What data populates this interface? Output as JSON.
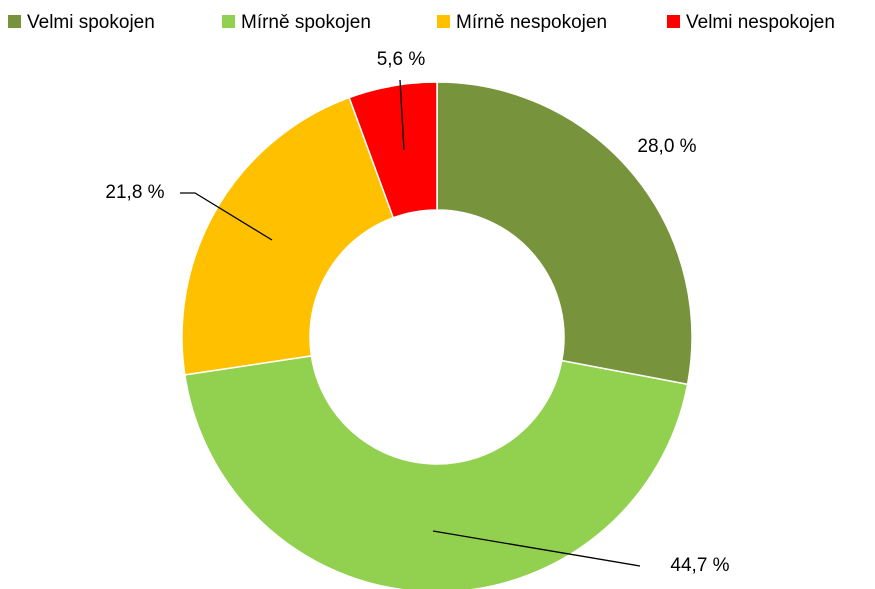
{
  "chart_data": {
    "type": "donut",
    "categories": [
      "Velmi spokojen",
      "Mírně spokojen",
      "Mírně nespokojen",
      "Velmi nespokojen"
    ],
    "values": [
      28.0,
      44.7,
      21.8,
      5.6
    ],
    "value_labels": [
      "28,0 %",
      "44,7 %",
      "21,8 %",
      "5,6 %"
    ],
    "colors": [
      "#77933c",
      "#92d050",
      "#ffc000",
      "#ff0000"
    ],
    "legend": "top"
  }
}
